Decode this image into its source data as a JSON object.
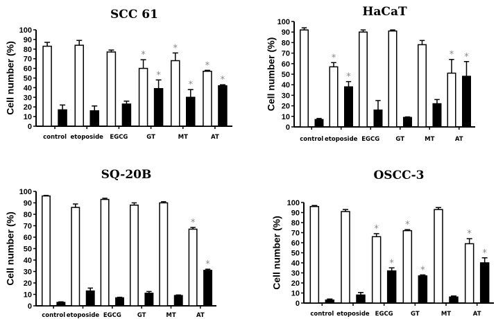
{
  "chart_data": [
    {
      "type": "bar",
      "title": "SCC 61",
      "ylabel": "Cell number (%)",
      "ylim": [
        0,
        100
      ],
      "yticks": [
        0,
        10,
        20,
        30,
        40,
        50,
        60,
        70,
        80,
        90,
        100
      ],
      "categories": [
        "control",
        "etoposide",
        "EGCG",
        "GT",
        "MT",
        "AT"
      ],
      "series": [
        {
          "fill": "#ffffff",
          "values": [
            83,
            84,
            77,
            60,
            68,
            57
          ],
          "errors": [
            4,
            5,
            2,
            9,
            8,
            1
          ],
          "significant": [
            false,
            false,
            false,
            true,
            true,
            true
          ]
        },
        {
          "fill": "#000000",
          "values": [
            17,
            16,
            23,
            39,
            30,
            42
          ],
          "errors": [
            5,
            5,
            3,
            9,
            8,
            1
          ],
          "significant": [
            false,
            false,
            false,
            true,
            true,
            true
          ]
        }
      ]
    },
    {
      "type": "bar",
      "title": "HaCaT",
      "ylabel": "Cell number (%)",
      "ylim": [
        0,
        100
      ],
      "yticks": [
        0,
        10,
        20,
        30,
        40,
        50,
        60,
        70,
        80,
        90,
        100
      ],
      "categories": [
        "control",
        "etoposide",
        "EGCG",
        "GT",
        "MT",
        "AT"
      ],
      "series": [
        {
          "fill": "#ffffff",
          "values": [
            92,
            57,
            90,
            91,
            78,
            51
          ],
          "errors": [
            2,
            4,
            2,
            1,
            4,
            13
          ],
          "significant": [
            false,
            true,
            false,
            false,
            false,
            true
          ]
        },
        {
          "fill": "#000000",
          "values": [
            7,
            38,
            16,
            9,
            22,
            48
          ],
          "errors": [
            1,
            5,
            9,
            0.5,
            4,
            14
          ],
          "significant": [
            false,
            true,
            false,
            false,
            false,
            true
          ]
        }
      ]
    },
    {
      "type": "bar",
      "title": "SQ-20B",
      "ylabel": "Cell number (%)",
      "ylim": [
        0,
        100
      ],
      "yticks": [
        0,
        10,
        20,
        30,
        40,
        50,
        60,
        70,
        80,
        90,
        100
      ],
      "categories": [
        "control",
        "etoposide",
        "EGCG",
        "GT",
        "MT",
        "AT"
      ],
      "series": [
        {
          "fill": "#ffffff",
          "values": [
            96,
            86,
            93,
            88,
            90,
            67
          ],
          "errors": [
            0.5,
            3,
            1,
            2,
            1,
            1.5
          ],
          "significant": [
            false,
            false,
            false,
            false,
            false,
            true
          ]
        },
        {
          "fill": "#000000",
          "values": [
            3,
            13,
            7,
            11,
            9,
            31
          ],
          "errors": [
            0.5,
            2.5,
            0.5,
            1.5,
            0.5,
            1
          ],
          "significant": [
            false,
            false,
            false,
            false,
            false,
            true
          ]
        }
      ]
    },
    {
      "type": "bar",
      "title": "OSCC-3",
      "ylabel": "Cell number (%)",
      "ylim": [
        0,
        100
      ],
      "yticks": [
        0,
        10,
        20,
        30,
        40,
        50,
        60,
        70,
        80,
        90,
        100
      ],
      "categories": [
        "control",
        "etoposide",
        "EGCG",
        "GT",
        "MT",
        "AT"
      ],
      "series": [
        {
          "fill": "#ffffff",
          "values": [
            96,
            91,
            66,
            72,
            93,
            59
          ],
          "errors": [
            1,
            2,
            3,
            1,
            2,
            5
          ],
          "significant": [
            false,
            false,
            true,
            true,
            false,
            true
          ]
        },
        {
          "fill": "#000000",
          "values": [
            3,
            8,
            32,
            27,
            6,
            40
          ],
          "errors": [
            1,
            2.5,
            3,
            1,
            1,
            5
          ],
          "significant": [
            false,
            false,
            true,
            true,
            false,
            true
          ]
        }
      ]
    }
  ],
  "significance_marker": "*"
}
